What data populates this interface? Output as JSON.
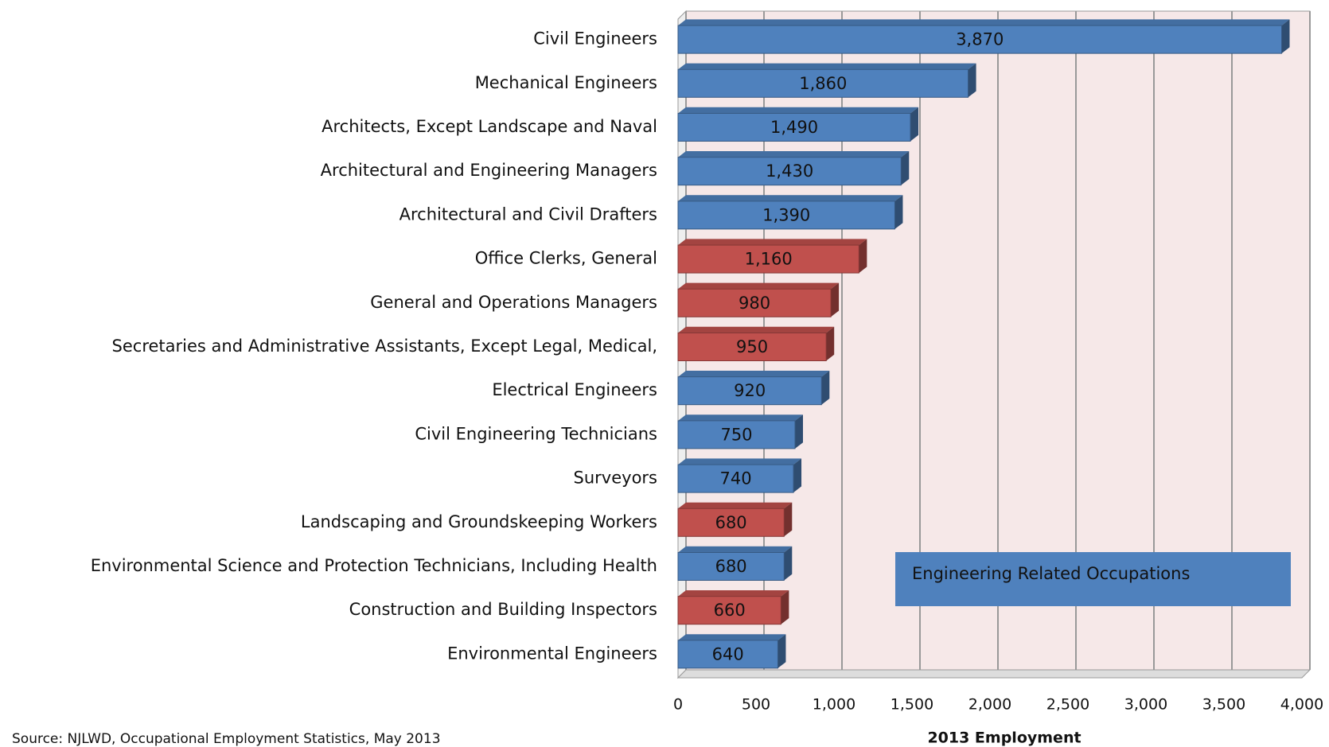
{
  "chart_data": {
    "type": "bar",
    "orientation": "horizontal",
    "categories": [
      "Civil Engineers",
      "Mechanical Engineers",
      "Architects, Except Landscape and Naval",
      "Architectural and Engineering Managers",
      "Architectural and Civil Drafters",
      "Office Clerks, General",
      "General and Operations Managers",
      "Secretaries and Administrative Assistants, Except Legal, Medical,",
      "Electrical Engineers",
      "Civil Engineering Technicians",
      "Surveyors",
      "Landscaping and Groundskeeping Workers",
      "Environmental Science and Protection Technicians, Including Health",
      "Construction and Building Inspectors",
      "Environmental Engineers"
    ],
    "values": [
      3870,
      1860,
      1490,
      1430,
      1390,
      1160,
      980,
      950,
      920,
      750,
      740,
      680,
      680,
      660,
      640
    ],
    "value_labels": [
      "3,870",
      "1,860",
      "1,490",
      "1,430",
      "1,390",
      "1,160",
      "980",
      "950",
      "920",
      "750",
      "740",
      "680",
      "680",
      "660",
      "640"
    ],
    "colors": [
      "#4f81bd",
      "#4f81bd",
      "#4f81bd",
      "#4f81bd",
      "#4f81bd",
      "#c0504d",
      "#c0504d",
      "#c0504d",
      "#4f81bd",
      "#4f81bd",
      "#4f81bd",
      "#c0504d",
      "#4f81bd",
      "#c0504d",
      "#4f81bd"
    ],
    "xlim": [
      0,
      4000
    ],
    "xticks": [
      0,
      500,
      {
        "value": 1000,
        "label": "1,000"
      },
      {
        "value": 1500,
        "label": "1,500"
      },
      {
        "value": 2000,
        "label": "2,000"
      },
      {
        "value": 2500,
        "label": "2,500"
      },
      {
        "value": 3000,
        "label": "3,000"
      },
      {
        "value": 3500,
        "label": "3,500"
      },
      {
        "value": 4000,
        "label": "4,000"
      }
    ],
    "xlabel": "2013 Employment",
    "grid": true,
    "legend": {
      "label": "Engineering Related Occupations",
      "color": "#4f81bd"
    },
    "source": "Source: NJLWD, Occupational Employment Statistics, May 2013"
  }
}
